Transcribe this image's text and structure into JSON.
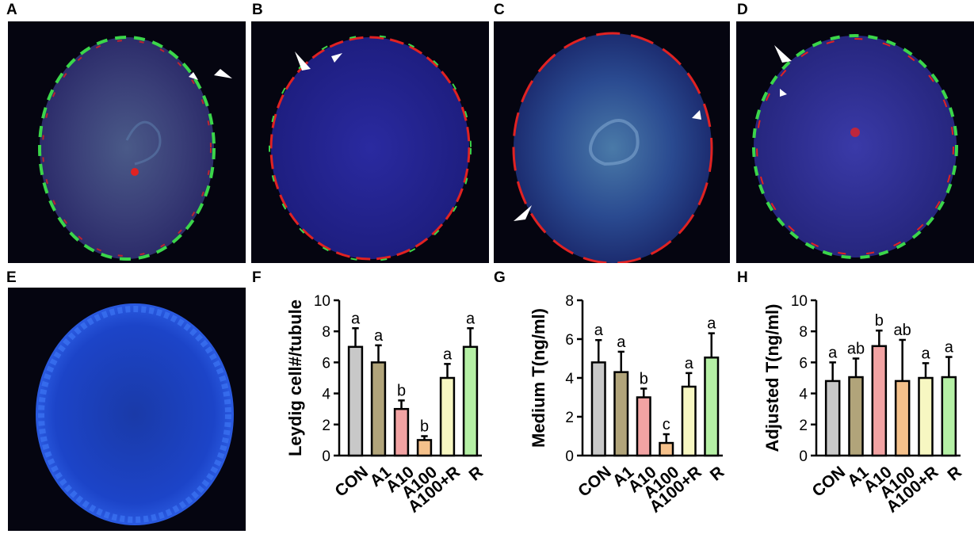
{
  "panels": {
    "A": "A",
    "B": "B",
    "C": "C",
    "D": "D",
    "E": "E",
    "F": "F",
    "G": "G",
    "H": "H"
  },
  "colors": {
    "CON": "#c8c8c8",
    "A1": "#b1a47a",
    "A10": "#f2a3a3",
    "A100": "#f5c18b",
    "A100+R": "#f7f7c2",
    "R": "#b5f0a5",
    "nucleus": "#2f3fd8",
    "green_stain": "#3bd64a",
    "red_stain": "#e02222"
  },
  "chart_data": [
    {
      "panel": "F",
      "type": "bar",
      "categories": [
        "CON",
        "A1",
        "A10",
        "A100",
        "A100+R",
        "R"
      ],
      "values": [
        7.0,
        6.0,
        3.0,
        1.0,
        5.0,
        7.0
      ],
      "errors": [
        1.2,
        1.1,
        0.55,
        0.25,
        0.9,
        1.2
      ],
      "labels": [
        "a",
        "a",
        "b",
        "b",
        "a",
        "a"
      ],
      "ylabel": "Leydig cell#/tubule",
      "ylim": [
        0,
        10
      ],
      "yticks": [
        "0",
        "2",
        "4",
        "6",
        "8",
        "10"
      ]
    },
    {
      "panel": "G",
      "type": "bar",
      "categories": [
        "CON",
        "A1",
        "A10",
        "A100",
        "A100+R",
        "R"
      ],
      "values": [
        4.8,
        4.3,
        3.0,
        0.65,
        3.55,
        5.05
      ],
      "errors": [
        1.15,
        1.05,
        0.45,
        0.45,
        0.7,
        1.25
      ],
      "labels": [
        "a",
        "a",
        "b",
        "c",
        "a",
        "a"
      ],
      "ylabel": "Medium T(ng/ml)",
      "ylim": [
        0,
        8
      ],
      "yticks": [
        "0",
        "2",
        "4",
        "6",
        "8"
      ]
    },
    {
      "panel": "H",
      "type": "bar",
      "categories": [
        "CON",
        "A1",
        "A10",
        "A100",
        "A100+R",
        "R"
      ],
      "values": [
        4.8,
        5.05,
        7.05,
        4.8,
        5.0,
        5.05
      ],
      "errors": [
        1.2,
        1.2,
        1.0,
        2.65,
        0.95,
        1.3
      ],
      "labels": [
        "a",
        "ab",
        "b",
        "ab",
        "a",
        "a"
      ],
      "ylabel": "Adjusted T(ng/ml)",
      "ylim": [
        0,
        10
      ],
      "yticks": [
        "0",
        "2",
        "4",
        "6",
        "8",
        "10"
      ]
    }
  ]
}
